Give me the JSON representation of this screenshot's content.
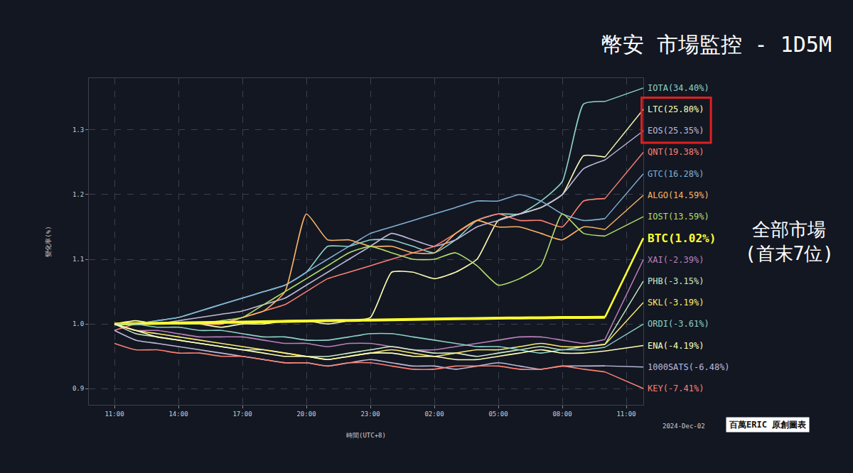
{
  "chart_data": {
    "type": "line",
    "title": "幣安 市場監控 - 1D5M",
    "note": "全部市場 (首末7位)",
    "date_label": "2024-Dec-02",
    "watermark": "百萬ERIC 原創圖表",
    "x_label": "時間(UTC+8)",
    "y_label": "變化率(%)",
    "x": [
      0,
      1,
      2,
      3,
      4,
      5,
      6,
      7,
      8,
      9,
      10,
      11,
      12,
      13,
      14,
      15,
      16,
      17,
      18,
      19,
      20,
      21,
      22,
      23
    ],
    "xlim": [
      -1.2,
      24.8
    ],
    "xticks": [
      {
        "value": 0,
        "label": "11:00"
      },
      {
        "value": 3,
        "label": "14:00"
      },
      {
        "value": 6,
        "label": "17:00"
      },
      {
        "value": 9,
        "label": "20:00"
      },
      {
        "value": 12,
        "label": "23:00"
      },
      {
        "value": 15,
        "label": "02:00"
      },
      {
        "value": 18,
        "label": "05:00"
      },
      {
        "value": 21,
        "label": "08:00"
      },
      {
        "value": 24,
        "label": "11:00"
      }
    ],
    "ylim": [
      0.875,
      1.38
    ],
    "yticks": [
      0.9,
      {
        "value": 1.0,
        "label": "1.0"
      },
      1.1,
      1.2,
      1.3
    ],
    "grid": true,
    "series": [
      {
        "name": "IOTA(34.40%)",
        "color": "#8dd3c7",
        "values": [
          1.0,
          1.0,
          1.005,
          1.01,
          1.02,
          1.03,
          1.04,
          1.05,
          1.06,
          1.08,
          1.12,
          1.12,
          1.13,
          1.13,
          1.12,
          1.11,
          1.13,
          1.16,
          1.17,
          1.17,
          1.19,
          1.22,
          1.34,
          1.344
        ]
      },
      {
        "name": "LTC(25.80%)",
        "color": "#ffffb3",
        "marker": "boxed",
        "values": [
          1.0,
          1.005,
          1.0,
          1.0,
          1.0,
          0.995,
          1.0,
          1.0,
          1.005,
          1.005,
          1.0,
          1.005,
          1.01,
          1.08,
          1.08,
          1.07,
          1.08,
          1.1,
          1.16,
          1.17,
          1.18,
          1.2,
          1.26,
          1.258
        ]
      },
      {
        "name": "EOS(25.35%)",
        "color": "#bebada",
        "marker": "boxed",
        "values": [
          1.0,
          1.0,
          1.0,
          1.005,
          1.01,
          1.015,
          1.02,
          1.03,
          1.04,
          1.06,
          1.08,
          1.1,
          1.12,
          1.14,
          1.13,
          1.12,
          1.13,
          1.15,
          1.16,
          1.17,
          1.18,
          1.2,
          1.24,
          1.2535
        ]
      },
      {
        "name": "QNT(19.38%)",
        "color": "#fb8072",
        "values": [
          0.99,
          1.0,
          1.0,
          1.0,
          1.0,
          1.0,
          1.01,
          1.02,
          1.03,
          1.05,
          1.07,
          1.08,
          1.09,
          1.1,
          1.11,
          1.12,
          1.14,
          1.16,
          1.17,
          1.16,
          1.16,
          1.15,
          1.19,
          1.1938
        ]
      },
      {
        "name": "GTC(16.28%)",
        "color": "#80b1d3",
        "values": [
          1.0,
          1.0,
          1.005,
          1.01,
          1.02,
          1.03,
          1.04,
          1.05,
          1.06,
          1.08,
          1.1,
          1.12,
          1.14,
          1.15,
          1.16,
          1.17,
          1.18,
          1.19,
          1.19,
          1.2,
          1.19,
          1.17,
          1.16,
          1.1628
        ]
      },
      {
        "name": "ALGO(14.59%)",
        "color": "#fdb462",
        "values": [
          1.0,
          1.0,
          1.0,
          1.0,
          1.0,
          1.0,
          1.01,
          1.02,
          1.05,
          1.17,
          1.13,
          1.13,
          1.12,
          1.12,
          1.11,
          1.11,
          1.14,
          1.16,
          1.15,
          1.15,
          1.14,
          1.13,
          1.15,
          1.1459
        ]
      },
      {
        "name": "IOST(13.59%)",
        "color": "#b3de69",
        "values": [
          1.0,
          1.0,
          1.0,
          1.0,
          1.0,
          1.005,
          1.01,
          1.03,
          1.05,
          1.07,
          1.09,
          1.11,
          1.12,
          1.11,
          1.1,
          1.1,
          1.11,
          1.09,
          1.06,
          1.07,
          1.09,
          1.17,
          1.14,
          1.1359
        ]
      },
      {
        "name": "BTC(1.02%)",
        "color": "#ffff33",
        "line_style": "bold",
        "values": [
          1.0,
          1.0005,
          1.001,
          1.0015,
          1.002,
          1.0025,
          1.003,
          1.0035,
          1.004,
          1.0045,
          1.005,
          1.0055,
          1.006,
          1.0065,
          1.007,
          1.0075,
          1.008,
          1.0085,
          1.009,
          1.0093,
          1.0096,
          1.0099,
          1.01,
          1.0102
        ]
      },
      {
        "name": "XAI(-2.39%)",
        "color": "#bc80bd",
        "values": [
          1.0,
          0.99,
          0.99,
          0.985,
          0.98,
          0.98,
          0.98,
          0.975,
          0.97,
          0.97,
          0.965,
          0.97,
          0.97,
          0.965,
          0.96,
          0.96,
          0.965,
          0.97,
          0.975,
          0.98,
          0.98,
          0.975,
          0.97,
          0.9761
        ]
      },
      {
        "name": "PHB(-3.15%)",
        "color": "#ccebc5",
        "values": [
          1.0,
          0.985,
          0.98,
          0.975,
          0.97,
          0.965,
          0.96,
          0.96,
          0.955,
          0.95,
          0.95,
          0.955,
          0.96,
          0.965,
          0.96,
          0.955,
          0.955,
          0.95,
          0.955,
          0.96,
          0.965,
          0.96,
          0.965,
          0.9685
        ]
      },
      {
        "name": "SKL(-3.19%)",
        "color": "#ffed6f",
        "values": [
          1.0,
          0.99,
          0.985,
          0.98,
          0.975,
          0.97,
          0.965,
          0.96,
          0.955,
          0.95,
          0.945,
          0.95,
          0.955,
          0.96,
          0.955,
          0.95,
          0.955,
          0.96,
          0.96,
          0.965,
          0.97,
          0.965,
          0.965,
          0.9681
        ]
      },
      {
        "name": "ORDI(-3.61%)",
        "color": "#8dd3c7",
        "values": [
          1.0,
          1.0,
          0.995,
          0.995,
          0.99,
          0.99,
          0.985,
          0.98,
          0.98,
          0.975,
          0.975,
          0.98,
          0.985,
          0.985,
          0.98,
          0.975,
          0.97,
          0.965,
          0.965,
          0.96,
          0.955,
          0.96,
          0.96,
          0.9639
        ]
      },
      {
        "name": "ENA(-4.19%)",
        "color": "#ffffb3",
        "values": [
          1.0,
          0.99,
          0.98,
          0.975,
          0.97,
          0.965,
          0.96,
          0.955,
          0.95,
          0.95,
          0.945,
          0.95,
          0.955,
          0.955,
          0.95,
          0.95,
          0.945,
          0.945,
          0.95,
          0.955,
          0.96,
          0.955,
          0.955,
          0.9581
        ]
      },
      {
        "name": "1000SATS(-6.48%)",
        "color": "#bebada",
        "values": [
          0.99,
          0.975,
          0.97,
          0.965,
          0.96,
          0.955,
          0.95,
          0.945,
          0.94,
          0.94,
          0.935,
          0.94,
          0.945,
          0.94,
          0.935,
          0.935,
          0.93,
          0.935,
          0.94,
          0.935,
          0.93,
          0.935,
          0.935,
          0.9352
        ]
      },
      {
        "name": "KEY(-7.41%)",
        "color": "#fb8072",
        "values": [
          0.97,
          0.96,
          0.96,
          0.955,
          0.955,
          0.95,
          0.95,
          0.945,
          0.94,
          0.94,
          0.935,
          0.94,
          0.94,
          0.935,
          0.93,
          0.93,
          0.935,
          0.935,
          0.935,
          0.93,
          0.93,
          0.935,
          0.93,
          0.9259
        ]
      }
    ]
  }
}
